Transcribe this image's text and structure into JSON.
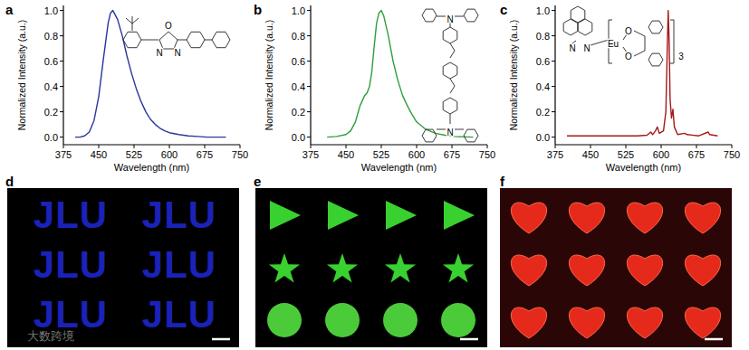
{
  "chart_data": [
    {
      "type": "line",
      "title": "a",
      "x_label": "Wavelength (nm)",
      "y_label": "Normalized Intensity (a.u.)",
      "color": "#27379b",
      "x": [
        400,
        410,
        420,
        430,
        440,
        450,
        460,
        470,
        475,
        480,
        490,
        500,
        510,
        520,
        530,
        540,
        550,
        560,
        570,
        580,
        590,
        600,
        620,
        640,
        660,
        680,
        720
      ],
      "values": [
        0,
        0,
        0.01,
        0.04,
        0.13,
        0.32,
        0.62,
        0.9,
        0.98,
        1.0,
        0.93,
        0.8,
        0.64,
        0.5,
        0.38,
        0.28,
        0.2,
        0.14,
        0.1,
        0.07,
        0.05,
        0.035,
        0.02,
        0.01,
        0.005,
        0,
        0
      ],
      "xlim": [
        375,
        750
      ],
      "xticks": [
        375,
        450,
        525,
        600,
        675,
        750
      ],
      "ylim": [
        -0.06,
        1.04
      ],
      "yticks": [
        {
          "value": 0,
          "label": "0.0"
        },
        {
          "value": 0.2,
          "label": "0.2"
        },
        {
          "value": 0.4,
          "label": "0.4"
        },
        {
          "value": 0.6,
          "label": "0.6"
        },
        {
          "value": 0.8,
          "label": "0.8"
        },
        {
          "value": 1.0,
          "label": "1.0"
        }
      ],
      "annotations": [
        "O",
        "N",
        "N"
      ]
    },
    {
      "type": "line",
      "title": "b",
      "x_label": "Wavelength (nm)",
      "y_label": "Normalized Intensity (a.u.)",
      "color": "#2f9e3a",
      "x": [
        410,
        430,
        450,
        460,
        470,
        480,
        490,
        495,
        500,
        505,
        510,
        515,
        520,
        525,
        530,
        540,
        550,
        560,
        570,
        580,
        590,
        600,
        620,
        640,
        660,
        680,
        720
      ],
      "values": [
        0,
        0.005,
        0.02,
        0.05,
        0.12,
        0.25,
        0.33,
        0.35,
        0.4,
        0.52,
        0.72,
        0.9,
        0.98,
        1.0,
        0.96,
        0.8,
        0.6,
        0.45,
        0.33,
        0.25,
        0.18,
        0.12,
        0.06,
        0.03,
        0.015,
        0.005,
        0
      ],
      "xlim": [
        375,
        750
      ],
      "xticks": [
        375,
        450,
        525,
        600,
        675,
        750
      ],
      "ylim": [
        -0.06,
        1.04
      ],
      "yticks": [
        {
          "value": 0,
          "label": "0.0"
        },
        {
          "value": 0.2,
          "label": "0.2"
        },
        {
          "value": 0.4,
          "label": "0.4"
        },
        {
          "value": 0.6,
          "label": "0.6"
        },
        {
          "value": 0.8,
          "label": "0.8"
        },
        {
          "value": 1.0,
          "label": "1.0"
        }
      ],
      "annotations": [
        "N",
        "N"
      ]
    },
    {
      "type": "line",
      "title": "c",
      "x_label": "Wavelength (nm)",
      "y_label": "Normalized Intensity (a.u.)",
      "color": "#a31a1a",
      "x": [
        400,
        450,
        500,
        550,
        570,
        578,
        582,
        588,
        592,
        596,
        605,
        610,
        613,
        615,
        617,
        619,
        622,
        625,
        628,
        635,
        650,
        655,
        680,
        700,
        703,
        720
      ],
      "values": [
        0.01,
        0.01,
        0.01,
        0.01,
        0.015,
        0.04,
        0.02,
        0.05,
        0.08,
        0.03,
        0.05,
        0.2,
        0.7,
        1.0,
        0.75,
        0.3,
        0.15,
        0.22,
        0.08,
        0.02,
        0.03,
        0.02,
        0.01,
        0.04,
        0.02,
        0.01
      ],
      "xlim": [
        375,
        750
      ],
      "xticks": [
        375,
        450,
        525,
        600,
        675,
        750
      ],
      "ylim": [
        -0.06,
        1.04
      ],
      "yticks": [
        {
          "value": 0,
          "label": "0.0"
        },
        {
          "value": 0.2,
          "label": "0.2"
        },
        {
          "value": 0.4,
          "label": "0.4"
        },
        {
          "value": 0.6,
          "label": "0.6"
        },
        {
          "value": 0.8,
          "label": "0.8"
        },
        {
          "value": 1.0,
          "label": "1.0"
        }
      ],
      "annotations": [
        "N",
        "N",
        "Eu",
        "O",
        "O",
        "3"
      ]
    }
  ],
  "images": [
    {
      "label": "d",
      "text": "JLU",
      "watermark": "大数跨境"
    },
    {
      "label": "e"
    },
    {
      "label": "f"
    }
  ]
}
